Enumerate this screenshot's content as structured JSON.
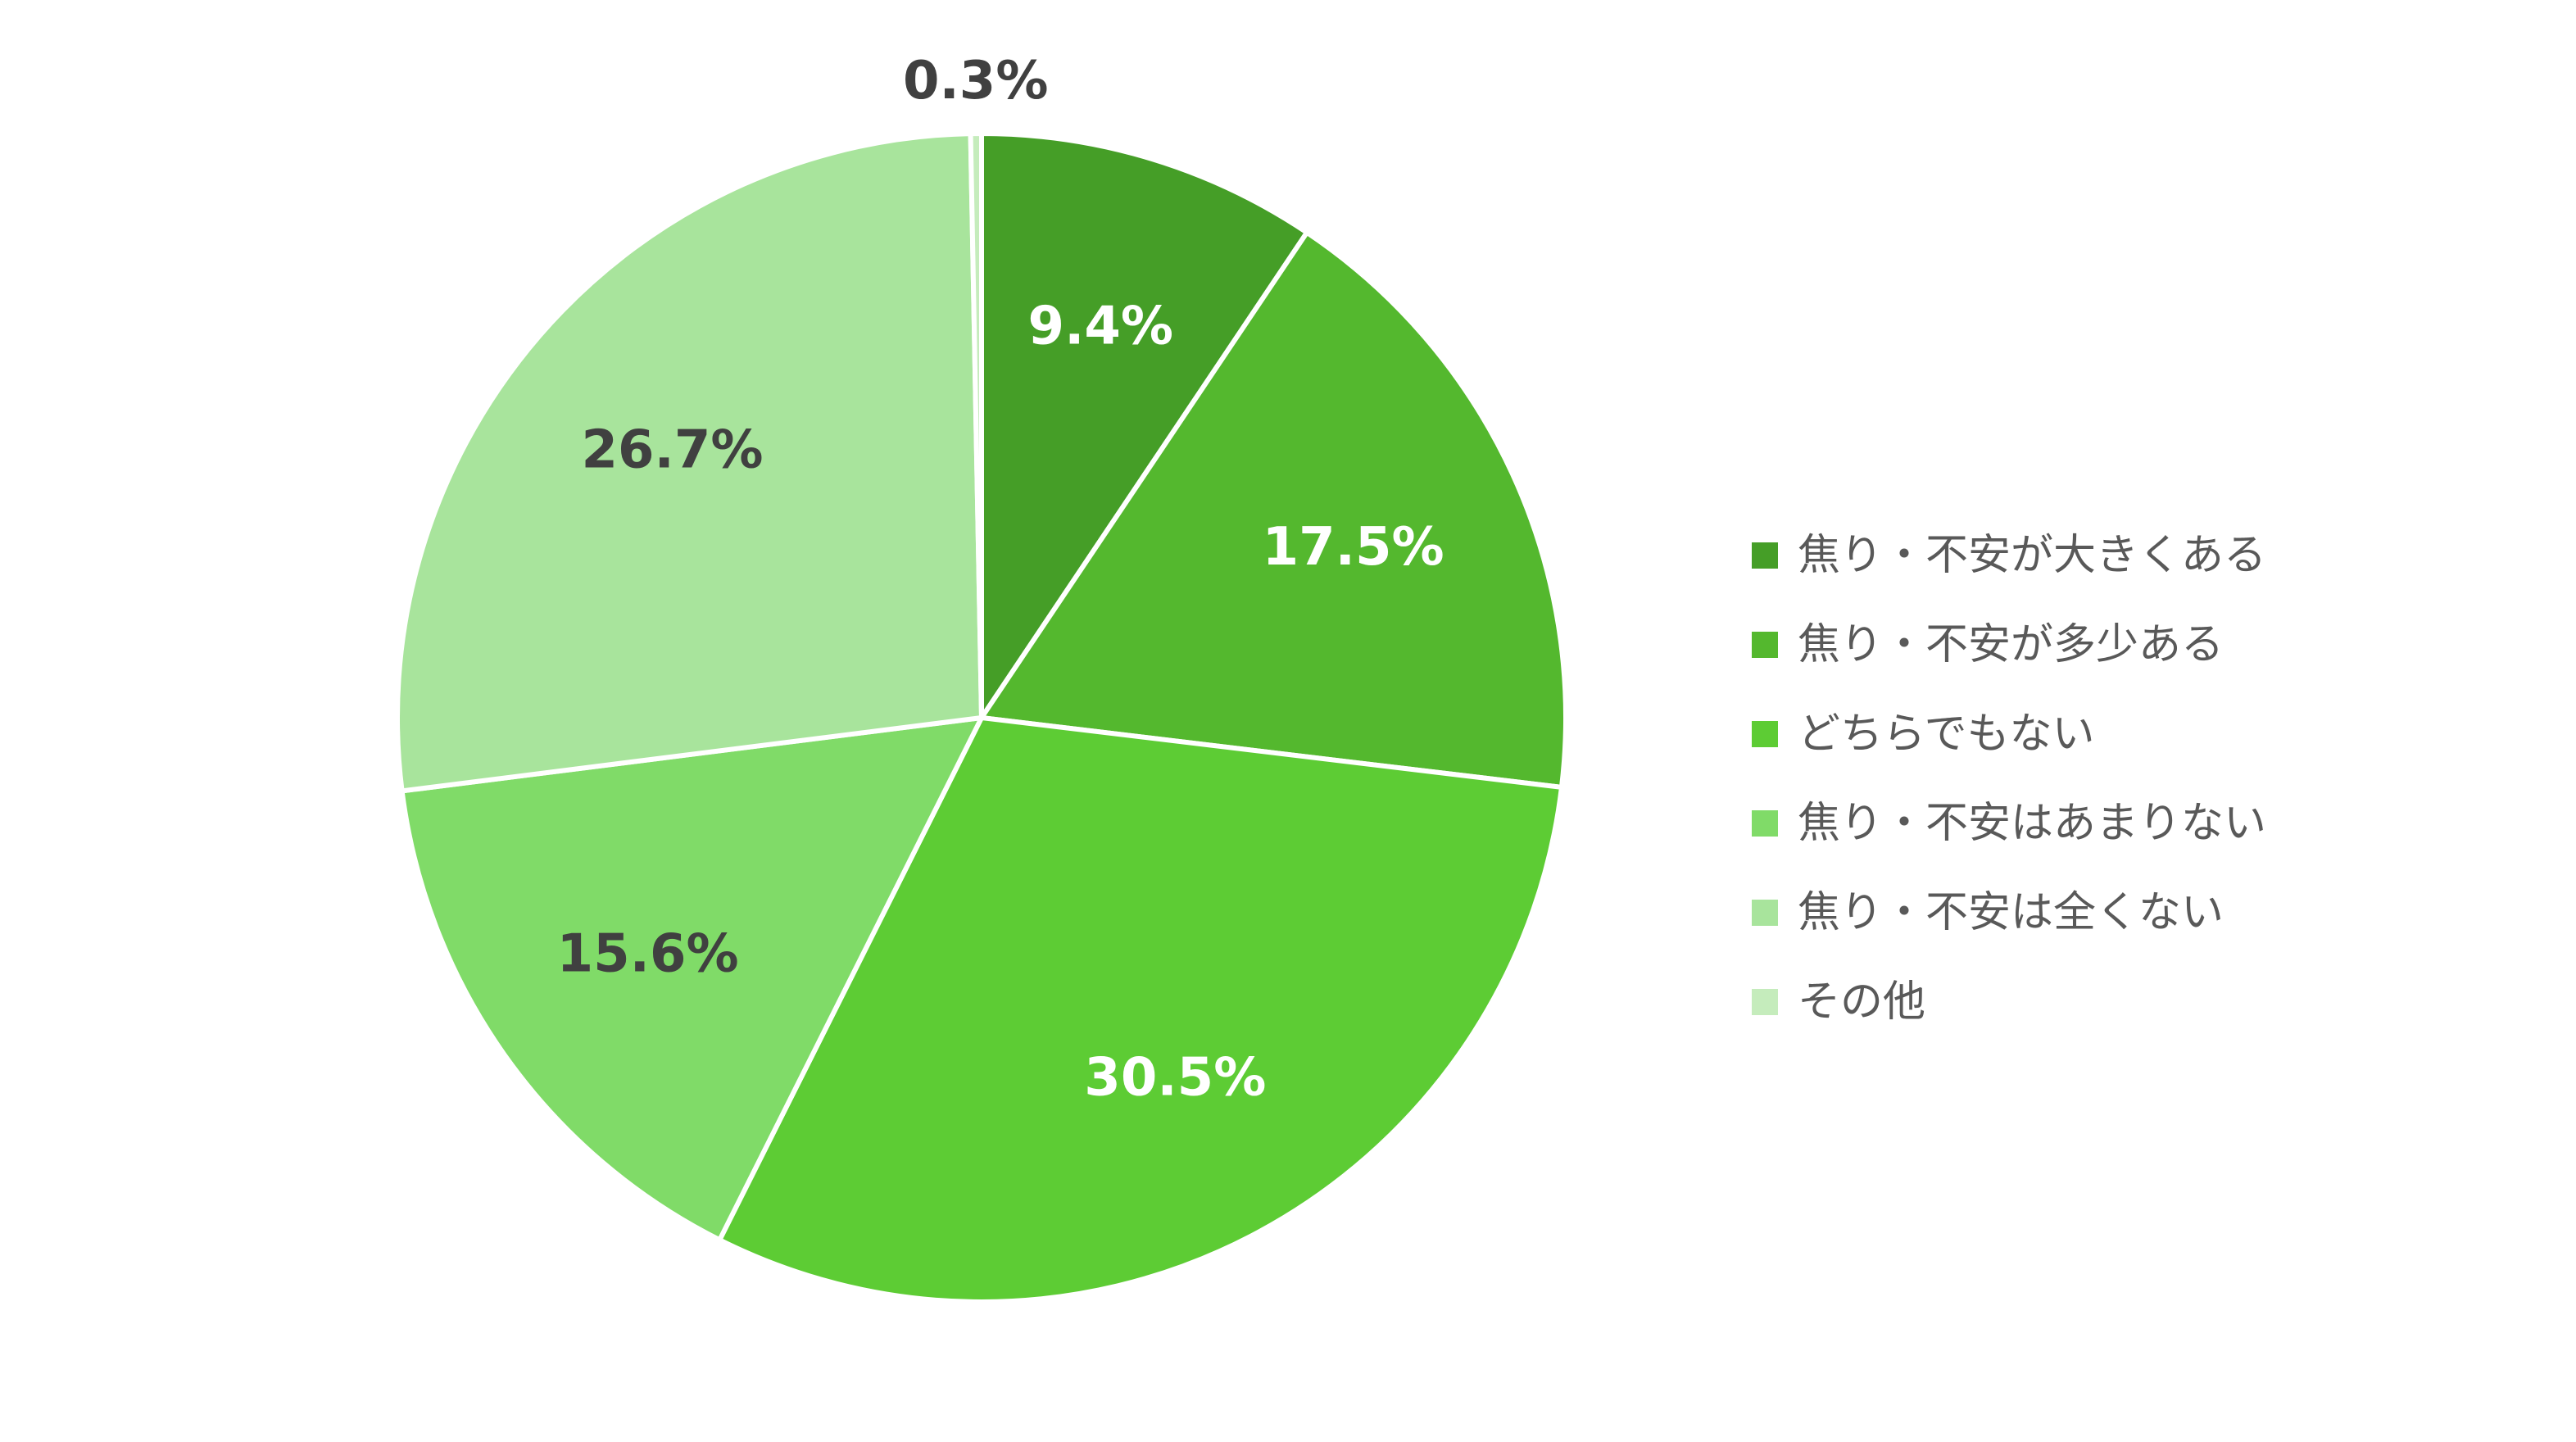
{
  "chart_data": {
    "type": "pie",
    "title": "",
    "categories": [
      "焦り・不安が大きくある",
      "焦り・不安が多少ある",
      "どちらでもない",
      "焦り・不安はあまりない",
      "焦り・不安は全くない",
      "その他"
    ],
    "values": [
      9.4,
      17.5,
      30.5,
      15.6,
      26.7,
      0.3
    ],
    "value_labels": [
      "9.4%",
      "17.5%",
      "30.5%",
      "15.6%",
      "26.7%",
      "0.3%"
    ],
    "colors": [
      "#459e27",
      "#54b82e",
      "#5dcc34",
      "#80db68",
      "#a8e49c",
      "#c5ecbc"
    ],
    "label_colors": [
      "#ffffff",
      "#ffffff",
      "#ffffff",
      "#404040",
      "#404040",
      "#404040"
    ],
    "start_angle": "12 o'clock",
    "direction": "clockwise",
    "legend_position": "right"
  }
}
